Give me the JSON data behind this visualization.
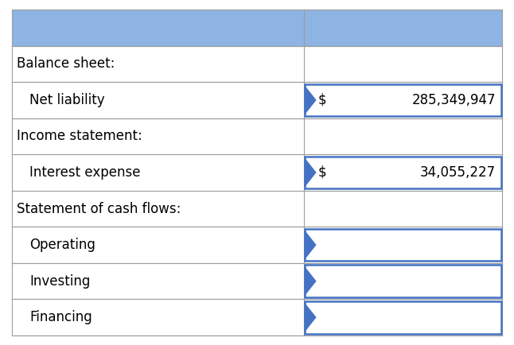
{
  "rows": [
    {
      "label": "",
      "value": "",
      "indent": false,
      "header_bg": true,
      "highlighted": false
    },
    {
      "label": "Balance sheet:",
      "value": "",
      "indent": false,
      "header_bg": false,
      "highlighted": false
    },
    {
      "label": "Net liability",
      "value": "$ 285,349,947",
      "indent": true,
      "header_bg": false,
      "highlighted": true
    },
    {
      "label": "Income statement:",
      "value": "",
      "indent": false,
      "header_bg": false,
      "highlighted": false
    },
    {
      "label": "Interest expense",
      "value": "$   34,055,227",
      "indent": true,
      "header_bg": false,
      "highlighted": true
    },
    {
      "label": "Statement of cash flows:",
      "value": "",
      "indent": false,
      "header_bg": false,
      "highlighted": false
    },
    {
      "label": "Operating",
      "value": "",
      "indent": true,
      "header_bg": false,
      "highlighted": true
    },
    {
      "label": "Investing",
      "value": "",
      "indent": true,
      "header_bg": false,
      "highlighted": true
    },
    {
      "label": "Financing",
      "value": "",
      "indent": true,
      "header_bg": false,
      "highlighted": true
    }
  ],
  "header_color": "#8db4e2",
  "highlight_border_color": "#4472c4",
  "border_color": "#9e9e9e",
  "text_color": "#000000",
  "background_color": "#ffffff",
  "arrow_color": "#4472c4",
  "font_size": 12,
  "col_split": 0.595
}
